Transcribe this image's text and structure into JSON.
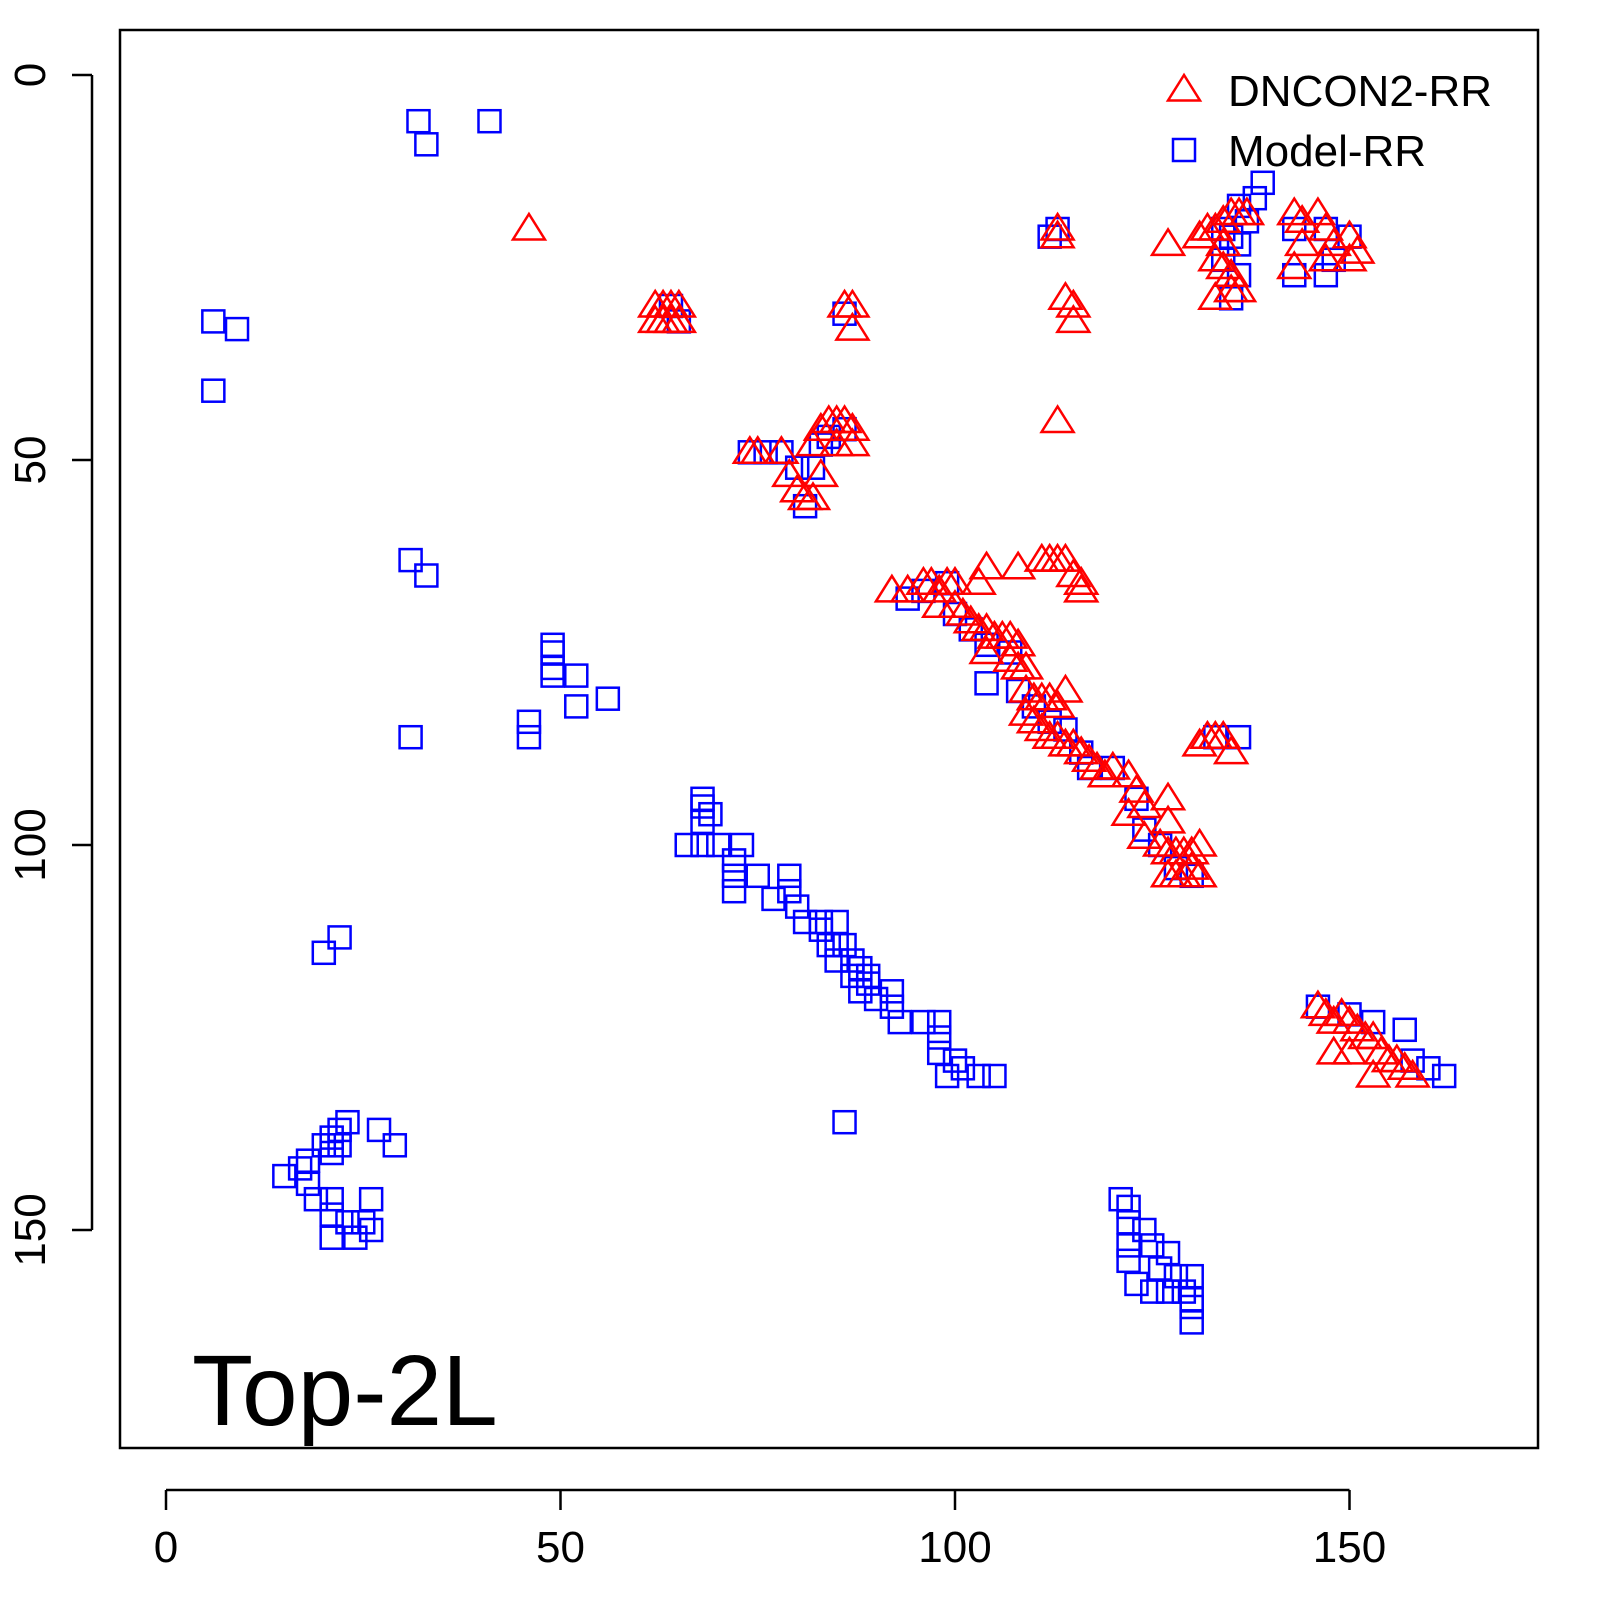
{
  "chart_data": {
    "type": "scatter",
    "title": "",
    "xlabel": "",
    "ylabel": "",
    "annotation": "Top-2L",
    "xlim": [
      -6,
      180
    ],
    "ylim": [
      176,
      -6
    ],
    "y_reversed": true,
    "x_ticks": [
      0,
      50,
      100,
      150
    ],
    "y_ticks": [
      0,
      50,
      100,
      150
    ],
    "x_tick_labels": [
      "0",
      "50",
      "100",
      "150"
    ],
    "y_tick_labels": [
      "0",
      "50",
      "100",
      "150"
    ],
    "grid": false,
    "legend_position": "top-right",
    "series": [
      {
        "name": "DNCON2-RR",
        "marker": "triangle",
        "color": "#ff0000",
        "points": [
          [
            46,
            20
          ],
          [
            62,
            30
          ],
          [
            63,
            30
          ],
          [
            64,
            30
          ],
          [
            65,
            30
          ],
          [
            62,
            32
          ],
          [
            63,
            32
          ],
          [
            64,
            32
          ],
          [
            65,
            32
          ],
          [
            86,
            30
          ],
          [
            87,
            30
          ],
          [
            87,
            33
          ],
          [
            113,
            20
          ],
          [
            113,
            21
          ],
          [
            114,
            29
          ],
          [
            115,
            30
          ],
          [
            115,
            32
          ],
          [
            113,
            45
          ],
          [
            74,
            49
          ],
          [
            75,
            49
          ],
          [
            78,
            49
          ],
          [
            79,
            52
          ],
          [
            82,
            48
          ],
          [
            83,
            46
          ],
          [
            84,
            45
          ],
          [
            85,
            45
          ],
          [
            86,
            45
          ],
          [
            87,
            46
          ],
          [
            85,
            48
          ],
          [
            87,
            48
          ],
          [
            80,
            54
          ],
          [
            81,
            55
          ],
          [
            82,
            55
          ],
          [
            83,
            52
          ],
          [
            127,
            22
          ],
          [
            131,
            21
          ],
          [
            132,
            20
          ],
          [
            133,
            20
          ],
          [
            134,
            19
          ],
          [
            135,
            18
          ],
          [
            136,
            18
          ],
          [
            137,
            18
          ],
          [
            134,
            22
          ],
          [
            133,
            24
          ],
          [
            134,
            25
          ],
          [
            135,
            26
          ],
          [
            135,
            28
          ],
          [
            136,
            28
          ],
          [
            133,
            29
          ],
          [
            143,
            18
          ],
          [
            144,
            19
          ],
          [
            144,
            22
          ],
          [
            146,
            18
          ],
          [
            147,
            20
          ],
          [
            148,
            22
          ],
          [
            150,
            21
          ],
          [
            151,
            23
          ],
          [
            147,
            24
          ],
          [
            150,
            24
          ],
          [
            143,
            25
          ],
          [
            92,
            67
          ],
          [
            94,
            67
          ],
          [
            96,
            66
          ],
          [
            97,
            66
          ],
          [
            98,
            67
          ],
          [
            99,
            66
          ],
          [
            100,
            66
          ],
          [
            98,
            69
          ],
          [
            100,
            69
          ],
          [
            103,
            66
          ],
          [
            104,
            64
          ],
          [
            108,
            64
          ],
          [
            111,
            63
          ],
          [
            112,
            63
          ],
          [
            113,
            63
          ],
          [
            114,
            63
          ],
          [
            115,
            65
          ],
          [
            116,
            66
          ],
          [
            116,
            67
          ],
          [
            101,
            70
          ],
          [
            102,
            71
          ],
          [
            103,
            72
          ],
          [
            104,
            72
          ],
          [
            105,
            73
          ],
          [
            106,
            73
          ],
          [
            107,
            73
          ],
          [
            108,
            74
          ],
          [
            104,
            75
          ],
          [
            107,
            76
          ],
          [
            108,
            77
          ],
          [
            109,
            77
          ],
          [
            109,
            80
          ],
          [
            110,
            81
          ],
          [
            111,
            81
          ],
          [
            112,
            81
          ],
          [
            113,
            82
          ],
          [
            114,
            80
          ],
          [
            109,
            83
          ],
          [
            110,
            84
          ],
          [
            111,
            85
          ],
          [
            112,
            86
          ],
          [
            113,
            86
          ],
          [
            114,
            87
          ],
          [
            115,
            87
          ],
          [
            116,
            88
          ],
          [
            117,
            89
          ],
          [
            118,
            90
          ],
          [
            119,
            91
          ],
          [
            120,
            90
          ],
          [
            122,
            91
          ],
          [
            123,
            93
          ],
          [
            122,
            96
          ],
          [
            124,
            95
          ],
          [
            127,
            94
          ],
          [
            127,
            97
          ],
          [
            131,
            87
          ],
          [
            132,
            86
          ],
          [
            133,
            86
          ],
          [
            134,
            86
          ],
          [
            135,
            88
          ],
          [
            124,
            99
          ],
          [
            126,
            100
          ],
          [
            127,
            101
          ],
          [
            128,
            101
          ],
          [
            129,
            101
          ],
          [
            130,
            101
          ],
          [
            131,
            100
          ],
          [
            127,
            104
          ],
          [
            128,
            104
          ],
          [
            129,
            104
          ],
          [
            130,
            103
          ],
          [
            131,
            104
          ],
          [
            146,
            121
          ],
          [
            147,
            122
          ],
          [
            148,
            123
          ],
          [
            149,
            122
          ],
          [
            150,
            123
          ],
          [
            151,
            124
          ],
          [
            152,
            125
          ],
          [
            153,
            125
          ],
          [
            154,
            127
          ],
          [
            155,
            128
          ],
          [
            156,
            128
          ],
          [
            157,
            129
          ],
          [
            158,
            130
          ],
          [
            153,
            130
          ],
          [
            150,
            127
          ],
          [
            148,
            127
          ]
        ]
      },
      {
        "name": "Model-RR",
        "marker": "square",
        "color": "#0000ff",
        "points": [
          [
            32,
            6
          ],
          [
            33,
            9
          ],
          [
            41,
            6
          ],
          [
            6,
            32
          ],
          [
            9,
            33
          ],
          [
            6,
            41
          ],
          [
            64,
            30
          ],
          [
            65,
            32
          ],
          [
            86,
            31
          ],
          [
            112,
            21
          ],
          [
            113,
            20
          ],
          [
            136,
            17
          ],
          [
            138,
            16
          ],
          [
            139,
            14
          ],
          [
            137,
            19
          ],
          [
            134,
            20
          ],
          [
            135,
            21
          ],
          [
            136,
            22
          ],
          [
            134,
            24
          ],
          [
            136,
            26
          ],
          [
            135,
            29
          ],
          [
            143,
            20
          ],
          [
            147,
            20
          ],
          [
            150,
            21
          ],
          [
            148,
            24
          ],
          [
            143,
            26
          ],
          [
            147,
            26
          ],
          [
            74,
            49
          ],
          [
            76,
            49
          ],
          [
            78,
            49
          ],
          [
            80,
            51
          ],
          [
            82,
            51
          ],
          [
            81,
            56
          ],
          [
            83,
            48
          ],
          [
            86,
            46
          ],
          [
            84,
            47
          ],
          [
            94,
            68
          ],
          [
            96,
            67
          ],
          [
            99,
            66
          ],
          [
            100,
            70
          ],
          [
            102,
            72
          ],
          [
            104,
            74
          ],
          [
            107,
            75
          ],
          [
            104,
            79
          ],
          [
            108,
            80
          ],
          [
            110,
            82
          ],
          [
            112,
            84
          ],
          [
            114,
            85
          ],
          [
            116,
            88
          ],
          [
            117,
            90
          ],
          [
            120,
            90
          ],
          [
            123,
            94
          ],
          [
            124,
            98
          ],
          [
            126,
            100
          ],
          [
            128,
            103
          ],
          [
            130,
            104
          ],
          [
            133,
            86
          ],
          [
            136,
            86
          ],
          [
            146,
            121
          ],
          [
            150,
            122
          ],
          [
            153,
            123
          ],
          [
            157,
            124
          ],
          [
            158,
            128
          ],
          [
            160,
            129
          ],
          [
            162,
            130
          ],
          [
            31,
            63
          ],
          [
            33,
            65
          ],
          [
            49,
            74
          ],
          [
            49,
            75
          ],
          [
            49,
            77
          ],
          [
            52,
            78
          ],
          [
            56,
            81
          ],
          [
            52,
            82
          ],
          [
            49,
            78
          ],
          [
            46,
            84
          ],
          [
            46,
            86
          ],
          [
            31,
            86
          ],
          [
            68,
            94
          ],
          [
            68,
            95
          ],
          [
            69,
            96
          ],
          [
            68,
            97
          ],
          [
            68,
            100
          ],
          [
            66,
            100
          ],
          [
            70,
            100
          ],
          [
            73,
            100
          ],
          [
            72,
            102
          ],
          [
            72,
            104
          ],
          [
            72,
            106
          ],
          [
            75,
            104
          ],
          [
            77,
            107
          ],
          [
            79,
            104
          ],
          [
            79,
            106
          ],
          [
            80,
            108
          ],
          [
            81,
            110
          ],
          [
            83,
            110
          ],
          [
            85,
            110
          ],
          [
            83,
            111
          ],
          [
            84,
            113
          ],
          [
            85,
            113
          ],
          [
            86,
            113
          ],
          [
            85,
            115
          ],
          [
            87,
            115
          ],
          [
            88,
            116
          ],
          [
            87,
            117
          ],
          [
            89,
            117
          ],
          [
            89,
            118
          ],
          [
            88,
            119
          ],
          [
            90,
            120
          ],
          [
            92,
            119
          ],
          [
            92,
            121
          ],
          [
            93,
            123
          ],
          [
            96,
            123
          ],
          [
            98,
            123
          ],
          [
            98,
            125
          ],
          [
            98,
            127
          ],
          [
            100,
            128
          ],
          [
            101,
            129
          ],
          [
            103,
            130
          ],
          [
            105,
            130
          ],
          [
            99,
            130
          ],
          [
            86,
            136
          ],
          [
            20,
            114
          ],
          [
            22,
            112
          ],
          [
            21,
            140
          ],
          [
            22,
            139
          ],
          [
            23,
            136
          ],
          [
            22,
            137
          ],
          [
            21,
            138
          ],
          [
            20,
            139
          ],
          [
            18,
            141
          ],
          [
            17,
            142
          ],
          [
            15,
            143
          ],
          [
            18,
            144
          ],
          [
            27,
            137
          ],
          [
            29,
            139
          ],
          [
            19,
            146
          ],
          [
            21,
            146
          ],
          [
            26,
            146
          ],
          [
            21,
            148
          ],
          [
            23,
            149
          ],
          [
            25,
            149
          ],
          [
            26,
            150
          ],
          [
            21,
            151
          ],
          [
            24,
            151
          ],
          [
            121,
            146
          ],
          [
            122,
            147
          ],
          [
            122,
            149
          ],
          [
            124,
            150
          ],
          [
            122,
            152
          ],
          [
            125,
            152
          ],
          [
            127,
            153
          ],
          [
            122,
            154
          ],
          [
            126,
            155
          ],
          [
            128,
            156
          ],
          [
            130,
            156
          ],
          [
            123,
            157
          ],
          [
            125,
            158
          ],
          [
            127,
            158
          ],
          [
            129,
            158
          ],
          [
            130,
            159
          ],
          [
            130,
            160
          ],
          [
            130,
            162
          ]
        ]
      }
    ]
  }
}
